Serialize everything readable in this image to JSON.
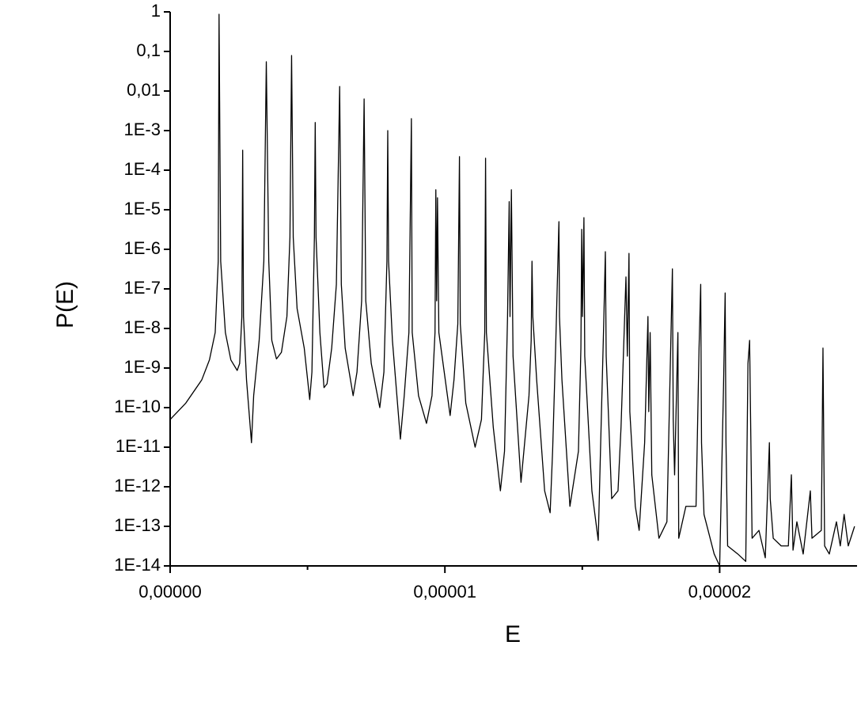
{
  "chart_data": {
    "type": "line",
    "xlabel": "E",
    "ylabel": "P(E)",
    "xlim": [
      0,
      2.5e-05
    ],
    "ylim": [
      1e-14,
      1
    ],
    "ylog": true,
    "xticks": [
      {
        "value": 0,
        "label": "0,00000"
      },
      {
        "value": 1e-05,
        "label": "0,00001"
      },
      {
        "value": 2e-05,
        "label": "0,00002"
      }
    ],
    "xminorticks": [
      5e-06,
      1.5e-05
    ],
    "yticks": [
      1,
      {
        "value": 0.1,
        "label": "0,1"
      },
      {
        "value": 0.01,
        "label": "0,01"
      },
      {
        "value": 0.001,
        "label": "1E-3"
      },
      {
        "value": 0.0001,
        "label": "1E-4"
      },
      {
        "value": 1e-05,
        "label": "1E-5"
      },
      {
        "value": 1e-06,
        "label": "1E-6"
      },
      {
        "value": 1e-07,
        "label": "1E-7"
      },
      {
        "value": 1e-08,
        "label": "1E-8"
      },
      {
        "value": 1e-09,
        "label": "1E-9"
      },
      {
        "value": 1e-10,
        "label": "1E-10"
      },
      {
        "value": 1e-11,
        "label": "1E-11"
      },
      {
        "value": 1e-12,
        "label": "1E-12"
      },
      {
        "value": 1e-13,
        "label": "1E-13"
      },
      {
        "value": 1e-14,
        "label": "1E-14"
      }
    ],
    "x": [
      0,
      5.7e-07,
      1.15e-06,
      1.43e-06,
      1.64e-06,
      1.75e-06,
      1.78e-06,
      1.84e-06,
      2.01e-06,
      2.21e-06,
      2.44e-06,
      2.53e-06,
      2.61e-06,
      2.64e-06,
      2.67e-06,
      2.78e-06,
      2.96e-06,
      3.04e-06,
      3.24e-06,
      3.41e-06,
      3.5e-06,
      3.59e-06,
      3.7e-06,
      3.87e-06,
      4.05e-06,
      4.25e-06,
      4.36e-06,
      4.42e-06,
      4.48e-06,
      4.62e-06,
      4.88e-06,
      5.08e-06,
      5.16e-06,
      5.25e-06,
      5.28e-06,
      5.31e-06,
      5.45e-06,
      5.6e-06,
      5.71e-06,
      5.88e-06,
      6.05e-06,
      6.17e-06,
      6.23e-06,
      6.37e-06,
      6.66e-06,
      6.8e-06,
      6.97e-06,
      7.06e-06,
      7.12e-06,
      7.32e-06,
      7.63e-06,
      7.78e-06,
      7.89e-06,
      7.92e-06,
      7.95e-06,
      8.09e-06,
      8.38e-06,
      8.52e-06,
      8.69e-06,
      8.78e-06,
      8.81e-06,
      9.04e-06,
      9.33e-06,
      9.53e-06,
      9.64e-06,
      9.67e-06,
      9.7e-06,
      9.73e-06,
      9.78e-06,
      1.019e-05,
      1.033e-05,
      1.047e-05,
      1.053e-05,
      1.056e-05,
      1.076e-05,
      1.11e-05,
      1.133e-05,
      1.145e-05,
      1.148e-05,
      1.151e-05,
      1.176e-05,
      1.202e-05,
      1.217e-05,
      1.228e-05,
      1.234e-05,
      1.237e-05,
      1.242e-05,
      1.248e-05,
      1.277e-05,
      1.306e-05,
      1.314e-05,
      1.317e-05,
      1.32e-05,
      1.334e-05,
      1.363e-05,
      1.383e-05,
      1.392e-05,
      1.403e-05,
      1.415e-05,
      1.417e-05,
      1.426e-05,
      1.455e-05,
      1.486e-05,
      1.495e-05,
      1.498e-05,
      1.501e-05,
      1.506e-05,
      1.509e-05,
      1.535e-05,
      1.558e-05,
      1.567e-05,
      1.578e-05,
      1.584e-05,
      1.587e-05,
      1.607e-05,
      1.63e-05,
      1.641e-05,
      1.659e-05,
      1.664e-05,
      1.67e-05,
      1.673e-05,
      1.693e-05,
      1.707e-05,
      1.727e-05,
      1.739e-05,
      1.742e-05,
      1.747e-05,
      1.753e-05,
      1.779e-05,
      1.808e-05,
      1.828e-05,
      1.831e-05,
      1.836e-05,
      1.848e-05,
      1.851e-05,
      1.877e-05,
      1.914e-05,
      1.925e-05,
      1.931e-05,
      1.934e-05,
      1.943e-05,
      1.98e-05,
      2e-05,
      2.014e-05,
      2.02e-05,
      2.023e-05,
      2.029e-05,
      2.066e-05,
      2.095e-05,
      2.103e-05,
      2.109e-05,
      2.118e-05,
      2.143e-05,
      2.166e-05,
      2.181e-05,
      2.184e-05,
      2.195e-05,
      2.224e-05,
      2.25e-05,
      2.261e-05,
      2.267e-05,
      2.281e-05,
      2.304e-05,
      2.33e-05,
      2.336e-05,
      2.37e-05,
      2.376e-05,
      2.382e-05,
      2.399e-05,
      2.425e-05,
      2.439e-05,
      2.453e-05,
      2.468e-05,
      2.491e-05
    ],
    "series": [
      {
        "color": "#000000",
        "values": [
          5e-11,
          1.3e-10,
          5e-10,
          1.6e-09,
          7.9e-09,
          5e-07,
          0.87,
          5e-07,
          7.9e-09,
          1.6e-09,
          8.7e-10,
          1.3e-09,
          2e-08,
          0.00032,
          2e-08,
          5e-10,
          1.3e-11,
          2e-10,
          5e-09,
          5e-07,
          0.055,
          5e-07,
          5e-09,
          1.7e-09,
          2.5e-09,
          2e-08,
          2e-06,
          0.079,
          2e-06,
          3.2e-08,
          3.2e-09,
          1.6e-10,
          7.9e-10,
          2e-06,
          0.0016,
          2e-06,
          7.9e-09,
          3.2e-10,
          4e-10,
          3.2e-09,
          1.3e-07,
          0.013,
          1.3e-07,
          3.2e-09,
          2e-10,
          7.9e-10,
          5e-08,
          0.0063,
          5e-08,
          1.3e-09,
          1e-10,
          7.9e-10,
          5e-07,
          0.001,
          5e-07,
          5e-09,
          1.6e-11,
          2e-10,
          7.9e-09,
          0.002,
          7.9e-09,
          2e-10,
          4e-11,
          2e-10,
          7.9e-09,
          3.2e-05,
          5e-08,
          2e-05,
          7.9e-09,
          6.3e-11,
          5e-10,
          1.3e-08,
          0.00022,
          1.3e-08,
          1.3e-10,
          1e-11,
          5e-11,
          7.9e-09,
          0.0002,
          7.9e-09,
          3.2e-11,
          7.9e-13,
          7.9e-12,
          2e-08,
          1.6e-05,
          2e-08,
          3.2e-05,
          2e-09,
          1.3e-12,
          2e-10,
          5e-09,
          5e-07,
          2e-08,
          5e-10,
          7.9e-13,
          2.2e-13,
          7.9e-12,
          3.2e-09,
          5e-06,
          2e-08,
          5e-10,
          3.2e-13,
          7.9e-12,
          3.2e-09,
          3.2e-06,
          2e-08,
          6.3e-06,
          2e-09,
          7.9e-13,
          4.4e-14,
          1.3e-11,
          1.3e-08,
          8.7e-07,
          2e-09,
          5e-13,
          7.9e-13,
          3.2e-11,
          2e-07,
          2e-09,
          7.9e-07,
          7.9e-11,
          3.2e-13,
          7.9e-14,
          1.3e-11,
          2e-08,
          7.9e-11,
          7.9e-09,
          2e-12,
          5e-14,
          1.3e-13,
          3.2e-07,
          5e-11,
          2e-12,
          7.9e-09,
          5e-14,
          3.2e-13,
          3.2e-13,
          3.2e-09,
          1.3e-07,
          1.3e-11,
          2e-13,
          2e-14,
          1e-14,
          3.2e-10,
          7.9e-08,
          1.3e-11,
          3.2e-14,
          2e-14,
          1.3e-14,
          1.3e-09,
          5e-09,
          5e-14,
          7.9e-14,
          1.6e-14,
          1.3e-11,
          5e-13,
          5e-14,
          3.2e-14,
          3.2e-14,
          2e-12,
          2.5e-14,
          1.3e-13,
          2e-14,
          7.9e-13,
          5e-14,
          7.9e-14,
          3.2e-09,
          3.2e-14,
          2e-14,
          1.3e-13,
          3.2e-14,
          2e-13,
          3.2e-14,
          1e-13
        ]
      }
    ]
  }
}
